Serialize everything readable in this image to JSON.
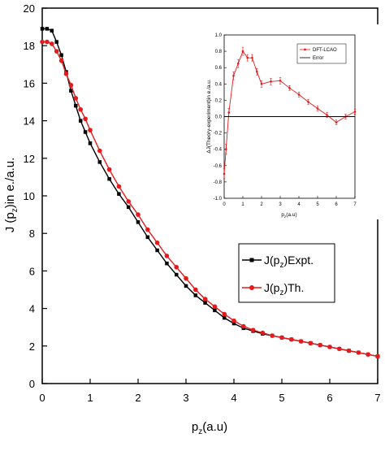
{
  "chart_data": [
    {
      "id": "main",
      "type": "line",
      "title": "",
      "xlabel_main": "p",
      "xlabel_sub": "z",
      "xlabel_rest": "(a.u)",
      "ylabel_pre": "J (p",
      "ylabel_sub": "z",
      "ylabel_post": ")in e./a.u.",
      "xlim": [
        0,
        7
      ],
      "ylim": [
        0,
        20
      ],
      "xticks": [
        "0",
        "1",
        "2",
        "3",
        "4",
        "5",
        "6",
        "7"
      ],
      "yticks": [
        "0",
        "2",
        "4",
        "6",
        "8",
        "10",
        "12",
        "14",
        "16",
        "18",
        "20"
      ],
      "grid": false,
      "legend_position": "center-right",
      "series": [
        {
          "name": "J(p",
          "name_sub": "z",
          "name_post": ")Expt.",
          "color": "#000000",
          "marker": "square",
          "x": [
            0.0,
            0.1,
            0.2,
            0.3,
            0.4,
            0.5,
            0.6,
            0.7,
            0.8,
            0.9,
            1.0,
            1.2,
            1.4,
            1.6,
            1.8,
            2.0,
            2.2,
            2.4,
            2.6,
            2.8,
            3.0,
            3.2,
            3.4,
            3.6,
            3.8,
            4.0,
            4.2,
            4.4,
            4.6,
            4.8,
            5.0,
            5.2,
            5.4,
            5.6,
            5.8,
            6.0,
            6.2,
            6.4,
            6.6,
            6.8,
            7.0
          ],
          "y": [
            18.9,
            18.9,
            18.8,
            18.2,
            17.5,
            16.6,
            15.6,
            14.8,
            14.0,
            13.4,
            12.8,
            11.8,
            10.9,
            10.1,
            9.4,
            8.6,
            7.8,
            7.1,
            6.4,
            5.8,
            5.2,
            4.7,
            4.3,
            3.9,
            3.5,
            3.2,
            2.95,
            2.8,
            2.65,
            2.55,
            2.45,
            2.35,
            2.25,
            2.15,
            2.05,
            1.95,
            1.85,
            1.75,
            1.65,
            1.55,
            1.45
          ]
        },
        {
          "name": "J(p",
          "name_sub": "z",
          "name_post": ")Th.",
          "color": "#e41a1c",
          "marker": "circle",
          "x": [
            0.0,
            0.1,
            0.2,
            0.3,
            0.4,
            0.5,
            0.6,
            0.7,
            0.8,
            0.9,
            1.0,
            1.2,
            1.4,
            1.6,
            1.8,
            2.0,
            2.2,
            2.4,
            2.6,
            2.8,
            3.0,
            3.2,
            3.4,
            3.6,
            3.8,
            4.0,
            4.2,
            4.4,
            4.6,
            4.8,
            5.0,
            5.2,
            5.4,
            5.6,
            5.8,
            6.0,
            6.2,
            6.4,
            6.6,
            6.8,
            7.0
          ],
          "y": [
            18.2,
            18.2,
            18.1,
            17.7,
            17.2,
            16.5,
            15.9,
            15.2,
            14.6,
            14.1,
            13.5,
            12.4,
            11.4,
            10.5,
            9.7,
            9.0,
            8.2,
            7.5,
            6.8,
            6.2,
            5.6,
            5.0,
            4.5,
            4.1,
            3.7,
            3.35,
            3.05,
            2.85,
            2.7,
            2.55,
            2.45,
            2.35,
            2.25,
            2.15,
            2.05,
            1.95,
            1.85,
            1.75,
            1.65,
            1.55,
            1.45
          ]
        }
      ]
    },
    {
      "id": "inset",
      "type": "line",
      "title": "",
      "xlabel_main": "p",
      "xlabel_sub": "z",
      "xlabel_rest": "(a.u)",
      "ylabel": "ΔJ(Theory-experiment)in e./a.u.",
      "xlim": [
        0,
        7
      ],
      "ylim": [
        -1.0,
        1.0
      ],
      "xticks": [
        "0",
        "1",
        "2",
        "3",
        "4",
        "5",
        "6",
        "7"
      ],
      "yticks": [
        "-1.0",
        "-0.8",
        "-0.6",
        "-0.4",
        "-0.2",
        "0.0",
        "0.2",
        "0.4",
        "0.6",
        "0.8",
        "1.0"
      ],
      "grid": false,
      "legend_position": "top-right",
      "series": [
        {
          "name": "DFT-LCAO",
          "color": "#e41a1c",
          "marker": "circle",
          "x": [
            0.0,
            0.1,
            0.25,
            0.5,
            0.75,
            1.0,
            1.25,
            1.5,
            1.75,
            2.0,
            2.5,
            3.0,
            3.5,
            4.0,
            4.5,
            5.0,
            5.5,
            6.0,
            6.5,
            7.0
          ],
          "y": [
            -0.7,
            -0.4,
            0.05,
            0.5,
            0.65,
            0.8,
            0.72,
            0.72,
            0.55,
            0.4,
            0.43,
            0.44,
            0.35,
            0.27,
            0.18,
            0.1,
            0.02,
            -0.07,
            0.0,
            0.06
          ],
          "err": [
            0.06,
            0.06,
            0.05,
            0.05,
            0.05,
            0.05,
            0.04,
            0.04,
            0.04,
            0.04,
            0.04,
            0.04,
            0.03,
            0.03,
            0.03,
            0.03,
            0.03,
            0.03,
            0.03,
            0.03
          ]
        },
        {
          "name": "Error",
          "color": "#000000",
          "marker": "none",
          "x": [
            0.0,
            7.0
          ],
          "y": [
            0.0,
            0.0
          ]
        }
      ]
    }
  ]
}
